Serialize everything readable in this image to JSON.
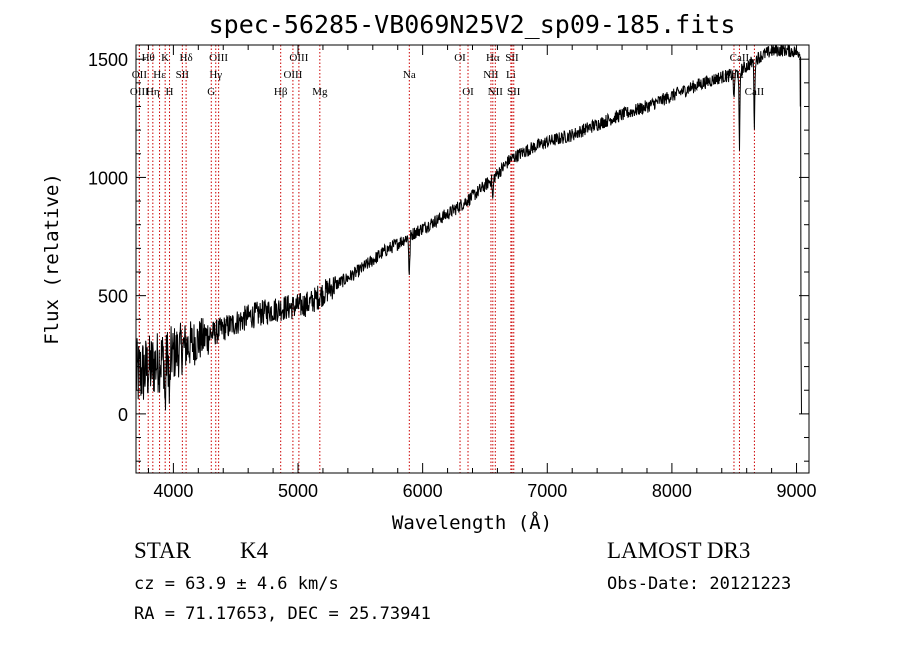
{
  "chart_data": {
    "type": "line",
    "title": "spec-56285-VB069N25V2_sp09-185.fits",
    "xlabel": "Wavelength (Å)",
    "ylabel": "Flux (relative)",
    "xlim": [
      3700,
      9100
    ],
    "ylim": [
      -250,
      1560
    ],
    "xticks": [
      4000,
      5000,
      6000,
      7000,
      8000,
      9000
    ],
    "yticks": [
      0,
      500,
      1000,
      1500
    ],
    "line_color": "#000000",
    "marker_color": "#cc0000",
    "spectrum_anchors": [
      [
        3700,
        160
      ],
      [
        3800,
        190
      ],
      [
        3900,
        230
      ],
      [
        4000,
        255
      ],
      [
        4100,
        285
      ],
      [
        4200,
        310
      ],
      [
        4300,
        335
      ],
      [
        4400,
        360
      ],
      [
        4500,
        385
      ],
      [
        4600,
        410
      ],
      [
        4700,
        425
      ],
      [
        4800,
        440
      ],
      [
        4900,
        450
      ],
      [
        5000,
        455
      ],
      [
        5100,
        470
      ],
      [
        5200,
        510
      ],
      [
        5300,
        545
      ],
      [
        5400,
        575
      ],
      [
        5500,
        610
      ],
      [
        5600,
        650
      ],
      [
        5700,
        690
      ],
      [
        5800,
        720
      ],
      [
        5900,
        755
      ],
      [
        6000,
        785
      ],
      [
        6100,
        815
      ],
      [
        6200,
        845
      ],
      [
        6300,
        880
      ],
      [
        6400,
        920
      ],
      [
        6500,
        965
      ],
      [
        6600,
        1015
      ],
      [
        6700,
        1075
      ],
      [
        6800,
        1105
      ],
      [
        6900,
        1130
      ],
      [
        7000,
        1150
      ],
      [
        7200,
        1180
      ],
      [
        7400,
        1225
      ],
      [
        7600,
        1265
      ],
      [
        7800,
        1300
      ],
      [
        8000,
        1345
      ],
      [
        8200,
        1390
      ],
      [
        8400,
        1425
      ],
      [
        8500,
        1435
      ],
      [
        8600,
        1470
      ],
      [
        8700,
        1510
      ],
      [
        8800,
        1535
      ],
      [
        8900,
        1540
      ],
      [
        9000,
        1530
      ]
    ],
    "absorption_features": [
      {
        "x": 5893,
        "depth": 170,
        "width": 6
      },
      {
        "x": 6563,
        "depth": 90,
        "width": 6
      },
      {
        "x": 8498,
        "depth": 120,
        "width": 5
      },
      {
        "x": 8542,
        "depth": 350,
        "width": 5
      },
      {
        "x": 8662,
        "depth": 280,
        "width": 5
      },
      {
        "x": 3934,
        "depth": 220,
        "width": 6
      },
      {
        "x": 3969,
        "depth": 200,
        "width": 6
      }
    ],
    "line_markers": [
      {
        "label": "Hθ",
        "x": 3798,
        "row": 1
      },
      {
        "label": "OII",
        "x": 3727,
        "row": 2
      },
      {
        "label": "OIII",
        "x": 3727,
        "row": 3
      },
      {
        "label": "K",
        "x": 3934,
        "row": 1
      },
      {
        "label": "Hε",
        "x": 3889,
        "row": 2
      },
      {
        "label": "Hη",
        "x": 3835,
        "row": 3
      },
      {
        "label": "SII",
        "x": 4072,
        "row": 2
      },
      {
        "label": "H",
        "x": 3969,
        "row": 3
      },
      {
        "label": "Hδ",
        "x": 4102,
        "row": 1
      },
      {
        "label": "OIII",
        "x": 4363,
        "row": 1
      },
      {
        "label": "Hγ",
        "x": 4340,
        "row": 2
      },
      {
        "label": "G",
        "x": 4304,
        "row": 3
      },
      {
        "label": "OIII",
        "x": 5007,
        "row": 1
      },
      {
        "label": "OIII",
        "x": 4959,
        "row": 2
      },
      {
        "label": "Hβ",
        "x": 4861,
        "row": 3
      },
      {
        "label": "Mg",
        "x": 5175,
        "row": 3
      },
      {
        "label": "Na",
        "x": 5893,
        "row": 2
      },
      {
        "label": "OI",
        "x": 6300,
        "row": 1
      },
      {
        "label": "OI",
        "x": 6364,
        "row": 3
      },
      {
        "label": "Hα",
        "x": 6563,
        "row": 1
      },
      {
        "label": "SII",
        "x": 6717,
        "row": 1
      },
      {
        "label": "NII",
        "x": 6548,
        "row": 2
      },
      {
        "label": "Li",
        "x": 6708,
        "row": 2
      },
      {
        "label": "NII",
        "x": 6583,
        "row": 3
      },
      {
        "label": "SII",
        "x": 6731,
        "row": 3
      },
      {
        "label": "CaII",
        "x": 8542,
        "row": 1
      },
      {
        "label": "CaII",
        "x": 8498,
        "row": 2
      },
      {
        "label": "CaII",
        "x": 8662,
        "row": 3
      }
    ]
  },
  "info": {
    "object_class": "STAR",
    "subclass": "K4",
    "survey": "LAMOST DR3",
    "redshift_line": "cz = 63.9 ± 4.6 km/s",
    "obs_date": "Obs-Date: 20121223",
    "coordinates": "RA =  71.17653, DEC =  25.73941"
  }
}
